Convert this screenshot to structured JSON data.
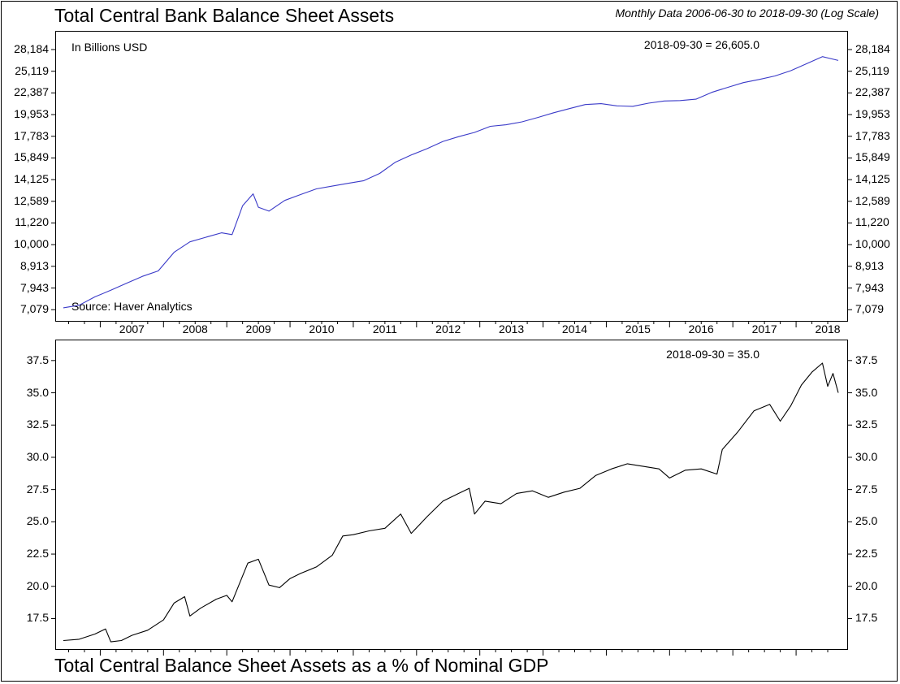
{
  "header": {
    "title": "Total Central Bank Balance Sheet Assets",
    "subtitle": "Monthly Data 2006-06-30 to 2018-09-30 (Log Scale)"
  },
  "footer": {
    "title": "Total Central Balance Sheet Assets as a % of Nominal GDP"
  },
  "chart_data": [
    {
      "type": "line",
      "title": "Total Central Bank Balance Sheet Assets",
      "unit_label": "In Billions USD",
      "source": "Source: Haver Analytics",
      "last_value_label": "2018-09-30 = 26,605.0",
      "y_scale": "log",
      "ylim": [
        6700,
        30200
      ],
      "yticks": [
        7079,
        7943,
        8913,
        10000,
        11220,
        12589,
        14125,
        15849,
        17783,
        19953,
        22387,
        25119,
        28184
      ],
      "ytick_labels": [
        "7,079",
        "7,943",
        "8,913",
        "10,000",
        "11,220",
        "12,589",
        "14,125",
        "15,849",
        "17,783",
        "19,953",
        "22,387",
        "25,119",
        "28,184"
      ],
      "x_start": "2006-06",
      "x_end": "2018-09",
      "x_tick_labels": [
        "2007",
        "2008",
        "2009",
        "2010",
        "2011",
        "2012",
        "2013",
        "2014",
        "2015",
        "2016",
        "2017",
        "2018"
      ],
      "line_color": "#3a3ac8",
      "series": [
        {
          "points": [
            [
              "2006-06",
              7150
            ],
            [
              "2006-09",
              7250
            ],
            [
              "2006-12",
              7580
            ],
            [
              "2007-03",
              7850
            ],
            [
              "2007-06",
              8150
            ],
            [
              "2007-09",
              8450
            ],
            [
              "2007-12",
              8700
            ],
            [
              "2008-03",
              9600
            ],
            [
              "2008-06",
              10150
            ],
            [
              "2008-09",
              10400
            ],
            [
              "2008-12",
              10650
            ],
            [
              "2009-02",
              10550
            ],
            [
              "2009-04",
              12300
            ],
            [
              "2009-06",
              13100
            ],
            [
              "2009-07",
              12200
            ],
            [
              "2009-09",
              11950
            ],
            [
              "2009-12",
              12650
            ],
            [
              "2010-03",
              13050
            ],
            [
              "2010-06",
              13450
            ],
            [
              "2010-09",
              13650
            ],
            [
              "2010-12",
              13850
            ],
            [
              "2011-03",
              14050
            ],
            [
              "2011-06",
              14600
            ],
            [
              "2011-09",
              15500
            ],
            [
              "2011-12",
              16100
            ],
            [
              "2012-03",
              16650
            ],
            [
              "2012-06",
              17300
            ],
            [
              "2012-09",
              17750
            ],
            [
              "2012-12",
              18150
            ],
            [
              "2013-03",
              18750
            ],
            [
              "2013-06",
              18900
            ],
            [
              "2013-09",
              19200
            ],
            [
              "2013-12",
              19650
            ],
            [
              "2014-03",
              20150
            ],
            [
              "2014-06",
              20600
            ],
            [
              "2014-09",
              21050
            ],
            [
              "2014-12",
              21150
            ],
            [
              "2015-03",
              20900
            ],
            [
              "2015-06",
              20850
            ],
            [
              "2015-09",
              21200
            ],
            [
              "2015-12",
              21450
            ],
            [
              "2016-03",
              21500
            ],
            [
              "2016-06",
              21650
            ],
            [
              "2016-09",
              22450
            ],
            [
              "2016-12",
              23050
            ],
            [
              "2017-03",
              23650
            ],
            [
              "2017-06",
              24050
            ],
            [
              "2017-09",
              24500
            ],
            [
              "2017-12",
              25200
            ],
            [
              "2018-03",
              26150
            ],
            [
              "2018-06",
              27150
            ],
            [
              "2018-09",
              26605
            ]
          ]
        }
      ]
    },
    {
      "type": "line",
      "title": "Total Central Balance Sheet Assets as a % of Nominal GDP",
      "last_value_label": "2018-09-30 = 35.0",
      "ylim": [
        15.2,
        39.0
      ],
      "yticks": [
        17.5,
        20.0,
        22.5,
        25.0,
        27.5,
        30.0,
        32.5,
        35.0,
        37.5
      ],
      "ytick_labels": [
        "17.5",
        "20.0",
        "22.5",
        "25.0",
        "27.5",
        "30.0",
        "32.5",
        "35.0",
        "37.5"
      ],
      "x_start": "2006-06",
      "x_end": "2018-09",
      "line_color": "#000000",
      "series": [
        {
          "points": [
            [
              "2006-06",
              15.8
            ],
            [
              "2006-09",
              15.9
            ],
            [
              "2006-12",
              16.3
            ],
            [
              "2007-02",
              16.7
            ],
            [
              "2007-03",
              15.7
            ],
            [
              "2007-05",
              15.8
            ],
            [
              "2007-07",
              16.2
            ],
            [
              "2007-10",
              16.6
            ],
            [
              "2008-01",
              17.4
            ],
            [
              "2008-03",
              18.7
            ],
            [
              "2008-05",
              19.2
            ],
            [
              "2008-06",
              17.7
            ],
            [
              "2008-08",
              18.3
            ],
            [
              "2008-11",
              19.0
            ],
            [
              "2009-01",
              19.3
            ],
            [
              "2009-02",
              18.8
            ],
            [
              "2009-05",
              21.8
            ],
            [
              "2009-07",
              22.1
            ],
            [
              "2009-09",
              20.1
            ],
            [
              "2009-11",
              19.9
            ],
            [
              "2010-01",
              20.6
            ],
            [
              "2010-03",
              21.0
            ],
            [
              "2010-06",
              21.5
            ],
            [
              "2010-09",
              22.4
            ],
            [
              "2010-11",
              23.9
            ],
            [
              "2011-01",
              24.0
            ],
            [
              "2011-04",
              24.3
            ],
            [
              "2011-07",
              24.5
            ],
            [
              "2011-10",
              25.6
            ],
            [
              "2011-12",
              24.1
            ],
            [
              "2012-03",
              25.4
            ],
            [
              "2012-06",
              26.6
            ],
            [
              "2012-09",
              27.2
            ],
            [
              "2012-11",
              27.6
            ],
            [
              "2012-12",
              25.6
            ],
            [
              "2013-02",
              26.6
            ],
            [
              "2013-05",
              26.4
            ],
            [
              "2013-08",
              27.2
            ],
            [
              "2013-11",
              27.4
            ],
            [
              "2014-02",
              26.9
            ],
            [
              "2014-05",
              27.3
            ],
            [
              "2014-08",
              27.6
            ],
            [
              "2014-11",
              28.6
            ],
            [
              "2015-02",
              29.1
            ],
            [
              "2015-05",
              29.5
            ],
            [
              "2015-08",
              29.3
            ],
            [
              "2015-11",
              29.1
            ],
            [
              "2016-01",
              28.4
            ],
            [
              "2016-04",
              29.0
            ],
            [
              "2016-07",
              29.1
            ],
            [
              "2016-10",
              28.7
            ],
            [
              "2016-11",
              30.6
            ],
            [
              "2017-02",
              32.0
            ],
            [
              "2017-05",
              33.6
            ],
            [
              "2017-08",
              34.1
            ],
            [
              "2017-10",
              32.8
            ],
            [
              "2017-12",
              34.0
            ],
            [
              "2018-02",
              35.6
            ],
            [
              "2018-04",
              36.6
            ],
            [
              "2018-06",
              37.3
            ],
            [
              "2018-07",
              35.5
            ],
            [
              "2018-08",
              36.5
            ],
            [
              "2018-09",
              35.0
            ]
          ]
        }
      ]
    }
  ]
}
